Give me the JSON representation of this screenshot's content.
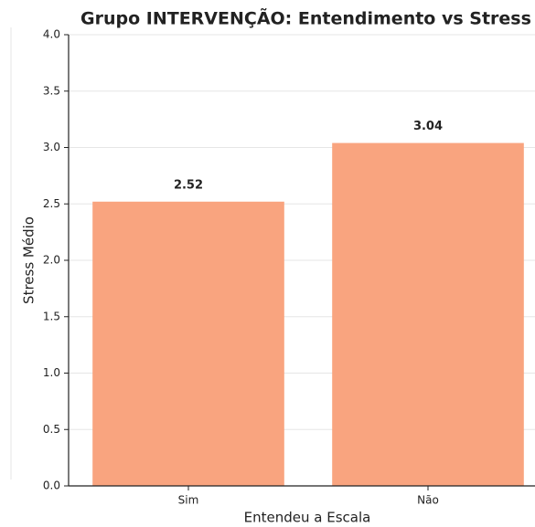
{
  "chart_data": {
    "type": "bar",
    "title": "Grupo INTERVENÇÃO: Entendimento vs Stress",
    "x_label": "Entendeu a Escala",
    "y_label": "Stress Médio",
    "categories": [
      "Sim",
      "Não"
    ],
    "values": [
      2.52,
      3.04
    ],
    "color": "#f9a47f",
    "ylim": [
      0,
      4
    ],
    "yticks": [
      {
        "value": 0,
        "label": "0.0"
      },
      0.5,
      {
        "value": 1,
        "label": "1.0"
      },
      1.5,
      {
        "value": 2,
        "label": "2.0"
      },
      2.5,
      {
        "value": 3,
        "label": "3.0"
      },
      3.5,
      {
        "value": 4,
        "label": "4.0"
      }
    ],
    "grid": true
  }
}
